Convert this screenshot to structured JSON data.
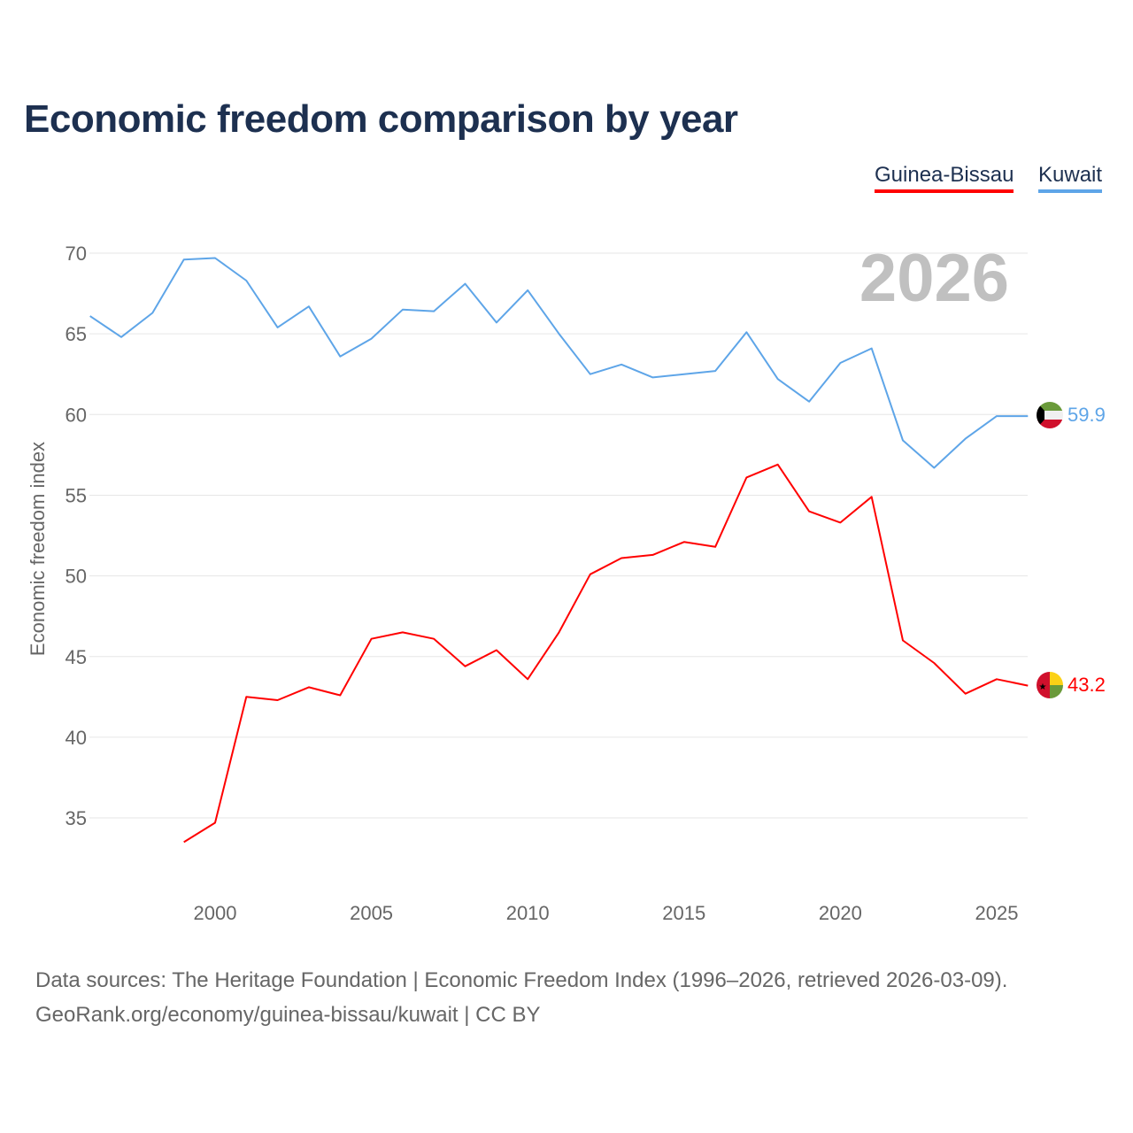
{
  "chart_data": {
    "type": "line",
    "title": "Economic freedom comparison by year",
    "xlabel": "",
    "ylabel": "Economic freedom index",
    "xlim": [
      1996,
      2026
    ],
    "ylim": [
      31,
      71
    ],
    "x_ticks": [
      "2000",
      "2005",
      "2010",
      "2015",
      "2020",
      "2025"
    ],
    "y_ticks": [
      "35",
      "40",
      "45",
      "50",
      "55",
      "60",
      "65",
      "70"
    ],
    "grid": true,
    "legend_position": "top-right",
    "year_label": "2026",
    "series": [
      {
        "name": "Guinea-Bissau",
        "color": "#ff0000",
        "end_label": "43.2",
        "x": [
          1999,
          2000,
          2001,
          2002,
          2003,
          2004,
          2005,
          2006,
          2007,
          2008,
          2009,
          2010,
          2011,
          2012,
          2013,
          2014,
          2015,
          2016,
          2017,
          2018,
          2019,
          2020,
          2021,
          2022,
          2023,
          2024,
          2025,
          2026
        ],
        "values": [
          33.5,
          34.7,
          42.5,
          42.3,
          43.1,
          42.6,
          46.1,
          46.5,
          46.1,
          44.4,
          45.4,
          43.6,
          46.5,
          50.1,
          51.1,
          51.3,
          52.1,
          51.8,
          56.1,
          56.9,
          54.0,
          53.3,
          54.9,
          46.0,
          44.6,
          42.7,
          43.6,
          43.2
        ]
      },
      {
        "name": "Kuwait",
        "color": "#5ea5e8",
        "end_label": "59.9",
        "x": [
          1996,
          1997,
          1998,
          1999,
          2000,
          2001,
          2002,
          2003,
          2004,
          2005,
          2006,
          2007,
          2008,
          2009,
          2010,
          2011,
          2012,
          2013,
          2014,
          2015,
          2016,
          2017,
          2018,
          2019,
          2020,
          2021,
          2022,
          2023,
          2024,
          2025,
          2026
        ],
        "values": [
          66.1,
          64.8,
          66.3,
          69.6,
          69.7,
          68.3,
          65.4,
          66.7,
          63.6,
          64.7,
          66.5,
          66.4,
          68.1,
          65.7,
          67.7,
          65.0,
          62.5,
          63.1,
          62.3,
          62.5,
          62.7,
          65.1,
          62.2,
          60.8,
          63.2,
          64.1,
          58.4,
          56.7,
          58.5,
          59.9,
          59.9
        ]
      }
    ]
  },
  "footer": {
    "line1": "Data sources: The Heritage Foundation | Economic Freedom Index (1996–2026, retrieved 2026-03-09).",
    "line2": "GeoRank.org/economy/guinea-bissau/kuwait | CC BY"
  }
}
